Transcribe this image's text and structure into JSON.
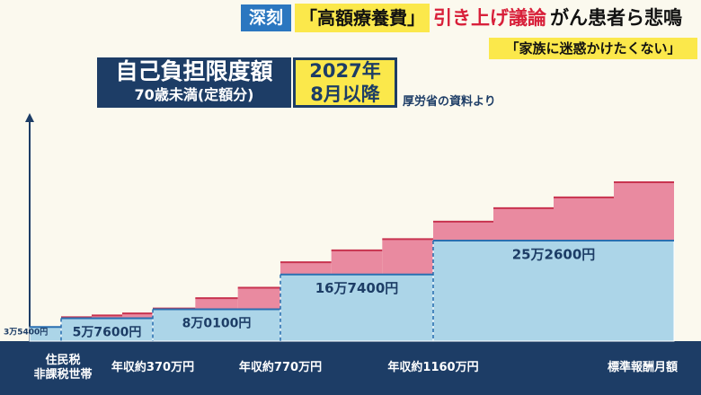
{
  "header": {
    "tag": "深刻",
    "topic": "「高額療養費」",
    "headline": "引き上げ議論",
    "subhead": "がん患者ら悲鳴",
    "quote": "「家族に迷惑かけたくない」"
  },
  "chart_data": {
    "type": "step",
    "title": "自己負担限度額",
    "subtitle": "70歳未満(定額分)",
    "badge": [
      "2027年",
      "8月以降"
    ],
    "source": "厚労省の資料より",
    "categories": [
      "住民税\n非課税世帯",
      "年収約370万円",
      "年収約770万円",
      "年収約1160万円",
      "標準報酬月額"
    ],
    "values": [
      35400,
      57600,
      80100,
      167400,
      252600
    ],
    "value_labels": [
      "3万5400円",
      "5万7600円",
      "8万0100円",
      "16万7400円",
      "25万2600円"
    ],
    "color": "#acd5e8",
    "increases": [
      [],
      [
        60000,
        64500,
        69500
      ],
      [
        82000,
        108000,
        134000
      ],
      [
        198000,
        228000,
        256000
      ],
      [
        300000,
        334000,
        361000,
        399000
      ]
    ],
    "increase_color": "#e98aa0"
  }
}
